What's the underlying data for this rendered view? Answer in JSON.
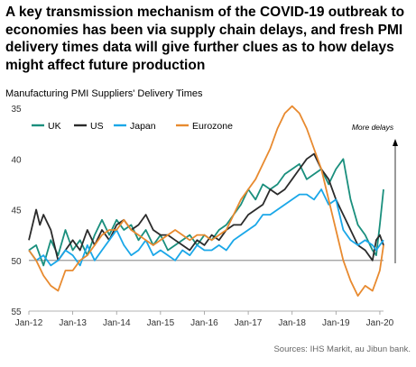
{
  "headline": "A key transmission mechanism of the COVID-19 outbreak to economies has been via supply chain delays, and fresh PMI delivery times data will give further clues as to how delays might affect future production",
  "source": "Sources: IHS Markit, au Jibun bank.",
  "chart_data": {
    "type": "line",
    "title": "Manufacturing PMI Suppliers' Delivery Times",
    "annotation": "More delays",
    "y_axis": {
      "reversed": true,
      "ylim": [
        35,
        55
      ],
      "ticks": [
        35,
        40,
        45,
        50,
        55
      ],
      "reference_line": 50
    },
    "x_axis": {
      "tick_labels": [
        "Jan-12",
        "Jan-13",
        "Jan-14",
        "Jan-15",
        "Jan-16",
        "Jan-17",
        "Jan-18",
        "Jan-19",
        "Jan-20"
      ],
      "xlim": [
        "2012-01",
        "2020-02"
      ]
    },
    "legend_position": "top-left",
    "series": [
      {
        "name": "UK",
        "color": "#1a8f7d",
        "points": [
          [
            "2012-01",
            49
          ],
          [
            "2012-03",
            48.5
          ],
          [
            "2012-05",
            50.5
          ],
          [
            "2012-07",
            48
          ],
          [
            "2012-09",
            49.5
          ],
          [
            "2012-11",
            47
          ],
          [
            "2013-01",
            49
          ],
          [
            "2013-03",
            48
          ],
          [
            "2013-05",
            49.5
          ],
          [
            "2013-07",
            47.5
          ],
          [
            "2013-09",
            46
          ],
          [
            "2013-11",
            47.5
          ],
          [
            "2014-01",
            46
          ],
          [
            "2014-03",
            47
          ],
          [
            "2014-05",
            46.5
          ],
          [
            "2014-07",
            48
          ],
          [
            "2014-09",
            47
          ],
          [
            "2014-11",
            48.5
          ],
          [
            "2015-01",
            47.5
          ],
          [
            "2015-03",
            49
          ],
          [
            "2015-05",
            48.5
          ],
          [
            "2015-07",
            48
          ],
          [
            "2015-09",
            47.5
          ],
          [
            "2015-11",
            48.5
          ],
          [
            "2016-01",
            47.5
          ],
          [
            "2016-03",
            48
          ],
          [
            "2016-05",
            47
          ],
          [
            "2016-07",
            46.5
          ],
          [
            "2016-09",
            45.5
          ],
          [
            "2016-11",
            44.5
          ],
          [
            "2017-01",
            43
          ],
          [
            "2017-03",
            44
          ],
          [
            "2017-05",
            42.5
          ],
          [
            "2017-07",
            43
          ],
          [
            "2017-09",
            42.5
          ],
          [
            "2017-11",
            41.5
          ],
          [
            "2018-01",
            41
          ],
          [
            "2018-03",
            40.5
          ],
          [
            "2018-05",
            42
          ],
          [
            "2018-07",
            41.5
          ],
          [
            "2018-09",
            41
          ],
          [
            "2018-11",
            42.5
          ],
          [
            "2019-01",
            41
          ],
          [
            "2019-03",
            40
          ],
          [
            "2019-05",
            44
          ],
          [
            "2019-07",
            46.5
          ],
          [
            "2019-09",
            47.5
          ],
          [
            "2019-11",
            49
          ],
          [
            "2019-12",
            49.5
          ],
          [
            "2020-01",
            46.5
          ],
          [
            "2020-02",
            43
          ]
        ]
      },
      {
        "name": "US",
        "color": "#2b2b2b",
        "points": [
          [
            "2012-01",
            48
          ],
          [
            "2012-03",
            45
          ],
          [
            "2012-04",
            46.5
          ],
          [
            "2012-05",
            45.5
          ],
          [
            "2012-07",
            47
          ],
          [
            "2012-09",
            50
          ],
          [
            "2012-11",
            49
          ],
          [
            "2013-01",
            48
          ],
          [
            "2013-03",
            49
          ],
          [
            "2013-05",
            47
          ],
          [
            "2013-07",
            48.5
          ],
          [
            "2013-09",
            47
          ],
          [
            "2013-11",
            48
          ],
          [
            "2014-01",
            46.5
          ],
          [
            "2014-03",
            46
          ],
          [
            "2014-05",
            47
          ],
          [
            "2014-07",
            46.5
          ],
          [
            "2014-09",
            45.5
          ],
          [
            "2014-11",
            47
          ],
          [
            "2015-01",
            47.5
          ],
          [
            "2015-03",
            47.5
          ],
          [
            "2015-05",
            48
          ],
          [
            "2015-07",
            48.5
          ],
          [
            "2015-09",
            49
          ],
          [
            "2015-11",
            48
          ],
          [
            "2016-01",
            48.5
          ],
          [
            "2016-03",
            47.5
          ],
          [
            "2016-05",
            48
          ],
          [
            "2016-07",
            47
          ],
          [
            "2016-09",
            46.5
          ],
          [
            "2016-11",
            46.5
          ],
          [
            "2017-01",
            45.5
          ],
          [
            "2017-03",
            45
          ],
          [
            "2017-05",
            44.5
          ],
          [
            "2017-07",
            43
          ],
          [
            "2017-09",
            43.5
          ],
          [
            "2017-11",
            43
          ],
          [
            "2018-01",
            42
          ],
          [
            "2018-03",
            41
          ],
          [
            "2018-05",
            40
          ],
          [
            "2018-07",
            39.5
          ],
          [
            "2018-09",
            41
          ],
          [
            "2018-11",
            42
          ],
          [
            "2019-01",
            44
          ],
          [
            "2019-03",
            45.5
          ],
          [
            "2019-05",
            47
          ],
          [
            "2019-07",
            48.5
          ],
          [
            "2019-09",
            49
          ],
          [
            "2019-11",
            50
          ],
          [
            "2019-12",
            48
          ],
          [
            "2020-01",
            47.5
          ],
          [
            "2020-02",
            48.5
          ]
        ]
      },
      {
        "name": "Japan",
        "color": "#1aa7e8",
        "points": [
          [
            "2012-01",
            49
          ],
          [
            "2012-03",
            50
          ],
          [
            "2012-05",
            49.5
          ],
          [
            "2012-07",
            50.5
          ],
          [
            "2012-09",
            50
          ],
          [
            "2012-11",
            49
          ],
          [
            "2013-01",
            49.5
          ],
          [
            "2013-03",
            50.5
          ],
          [
            "2013-05",
            48.5
          ],
          [
            "2013-07",
            50
          ],
          [
            "2013-09",
            49
          ],
          [
            "2013-11",
            48
          ],
          [
            "2014-01",
            47
          ],
          [
            "2014-03",
            48.5
          ],
          [
            "2014-05",
            49.5
          ],
          [
            "2014-07",
            49
          ],
          [
            "2014-09",
            48
          ],
          [
            "2014-11",
            49.5
          ],
          [
            "2015-01",
            49
          ],
          [
            "2015-03",
            49.5
          ],
          [
            "2015-05",
            50
          ],
          [
            "2015-07",
            49
          ],
          [
            "2015-09",
            49.5
          ],
          [
            "2015-11",
            48.5
          ],
          [
            "2016-01",
            49
          ],
          [
            "2016-03",
            49
          ],
          [
            "2016-05",
            48.5
          ],
          [
            "2016-07",
            49
          ],
          [
            "2016-09",
            48
          ],
          [
            "2016-11",
            47.5
          ],
          [
            "2017-01",
            47
          ],
          [
            "2017-03",
            46.5
          ],
          [
            "2017-05",
            45.5
          ],
          [
            "2017-07",
            45.5
          ],
          [
            "2017-09",
            45
          ],
          [
            "2017-11",
            44.5
          ],
          [
            "2018-01",
            44
          ],
          [
            "2018-03",
            43.5
          ],
          [
            "2018-05",
            43.5
          ],
          [
            "2018-07",
            44
          ],
          [
            "2018-09",
            43
          ],
          [
            "2018-11",
            44.5
          ],
          [
            "2019-01",
            44
          ],
          [
            "2019-03",
            47
          ],
          [
            "2019-05",
            48
          ],
          [
            "2019-07",
            48.5
          ],
          [
            "2019-09",
            48
          ],
          [
            "2019-11",
            48.5
          ],
          [
            "2019-12",
            49
          ],
          [
            "2020-01",
            48.5
          ],
          [
            "2020-02",
            48
          ]
        ]
      },
      {
        "name": "Eurozone",
        "color": "#e88a2f",
        "points": [
          [
            "2012-01",
            49
          ],
          [
            "2012-03",
            50
          ],
          [
            "2012-05",
            51.5
          ],
          [
            "2012-07",
            52.5
          ],
          [
            "2012-09",
            53
          ],
          [
            "2012-11",
            51
          ],
          [
            "2013-01",
            51
          ],
          [
            "2013-03",
            50
          ],
          [
            "2013-05",
            49.5
          ],
          [
            "2013-07",
            48.5
          ],
          [
            "2013-09",
            47.5
          ],
          [
            "2013-11",
            47
          ],
          [
            "2014-01",
            47
          ],
          [
            "2014-03",
            46
          ],
          [
            "2014-05",
            47
          ],
          [
            "2014-07",
            47.5
          ],
          [
            "2014-09",
            48
          ],
          [
            "2014-11",
            48.5
          ],
          [
            "2015-01",
            48
          ],
          [
            "2015-03",
            47.5
          ],
          [
            "2015-05",
            47
          ],
          [
            "2015-07",
            47.5
          ],
          [
            "2015-09",
            48
          ],
          [
            "2015-11",
            47.5
          ],
          [
            "2016-01",
            47.5
          ],
          [
            "2016-03",
            48
          ],
          [
            "2016-05",
            47.5
          ],
          [
            "2016-07",
            47
          ],
          [
            "2016-09",
            45.5
          ],
          [
            "2016-11",
            44
          ],
          [
            "2017-01",
            43
          ],
          [
            "2017-03",
            42
          ],
          [
            "2017-05",
            40.5
          ],
          [
            "2017-07",
            39
          ],
          [
            "2017-09",
            37
          ],
          [
            "2017-11",
            35.5
          ],
          [
            "2018-01",
            34.8
          ],
          [
            "2018-03",
            35.5
          ],
          [
            "2018-05",
            37
          ],
          [
            "2018-07",
            39
          ],
          [
            "2018-09",
            41
          ],
          [
            "2018-11",
            44
          ],
          [
            "2019-01",
            47
          ],
          [
            "2019-03",
            50
          ],
          [
            "2019-05",
            52
          ],
          [
            "2019-07",
            53.5
          ],
          [
            "2019-09",
            52.5
          ],
          [
            "2019-11",
            53
          ],
          [
            "2019-12",
            52
          ],
          [
            "2020-01",
            51
          ],
          [
            "2020-02",
            48.5
          ]
        ]
      }
    ]
  }
}
